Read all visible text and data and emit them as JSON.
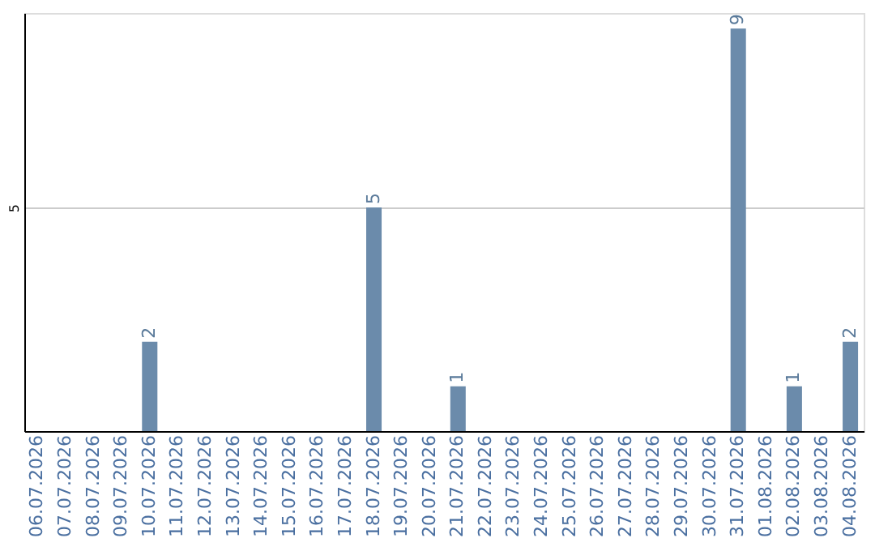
{
  "chart_data": {
    "type": "bar",
    "categories": [
      "06.07.2026",
      "07.07.2026",
      "08.07.2026",
      "09.07.2026",
      "10.07.2026",
      "11.07.2026",
      "12.07.2026",
      "13.07.2026",
      "14.07.2026",
      "15.07.2026",
      "16.07.2026",
      "17.07.2026",
      "18.07.2026",
      "19.07.2026",
      "20.07.2026",
      "21.07.2026",
      "22.07.2026",
      "23.07.2026",
      "24.07.2026",
      "25.07.2026",
      "26.07.2026",
      "27.07.2026",
      "28.07.2026",
      "29.07.2026",
      "30.07.2026",
      "31.07.2026",
      "01.08.2026",
      "02.08.2026",
      "03.08.2026",
      "04.08.2026"
    ],
    "values": [
      0,
      0,
      0,
      0,
      2,
      0,
      0,
      0,
      0,
      0,
      0,
      0,
      5,
      0,
      0,
      1,
      0,
      0,
      0,
      0,
      0,
      0,
      0,
      0,
      0,
      9,
      0,
      1,
      0,
      2
    ],
    "value_labels": [
      null,
      null,
      null,
      null,
      "2",
      null,
      null,
      null,
      null,
      null,
      null,
      null,
      "5",
      null,
      null,
      "1",
      null,
      null,
      null,
      null,
      null,
      null,
      null,
      null,
      null,
      "9",
      null,
      "1",
      null,
      "2"
    ],
    "color": "#6b8bab",
    "ylim": [
      0,
      9.35
    ],
    "yticks": [
      5
    ],
    "grid": "y"
  }
}
